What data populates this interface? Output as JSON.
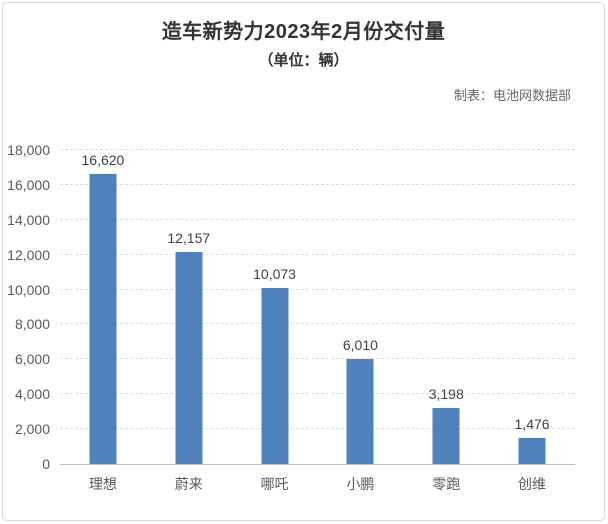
{
  "header": {
    "title": "造车新势力2023年2月份交付量",
    "subtitle": "（单位：辆）",
    "credit": "制表：电池网数据部"
  },
  "colors": {
    "bar": "#4F81BD",
    "grid": "#DCDCDC",
    "axis": "#BFBFBF",
    "border": "#D9D9D9",
    "title_text": "#333333",
    "label_text": "#595959",
    "value_text": "#404040",
    "credit_text": "#666666",
    "background": "#FFFFFF"
  },
  "chart_data": {
    "type": "bar",
    "title": "造车新势力2023年2月份交付量",
    "subtitle": "（单位：辆）",
    "categories": [
      "理想",
      "蔚来",
      "哪吒",
      "小鹏",
      "零跑",
      "创维"
    ],
    "values": [
      16620,
      12157,
      10073,
      6010,
      3198,
      1476
    ],
    "value_labels": [
      "16,620",
      "12,157",
      "10,073",
      "6,010",
      "3,198",
      "1,476"
    ],
    "xlabel": "",
    "ylabel": "",
    "ylim": [
      0,
      18000
    ],
    "ytick_step": 2000,
    "ytick_labels": [
      "0",
      "2,000",
      "4,000",
      "6,000",
      "8,000",
      "10,000",
      "12,000",
      "14,000",
      "16,000",
      "18,000"
    ],
    "grid": "horizontal-dashed",
    "legend": "none",
    "bar_orientation": "vertical"
  }
}
